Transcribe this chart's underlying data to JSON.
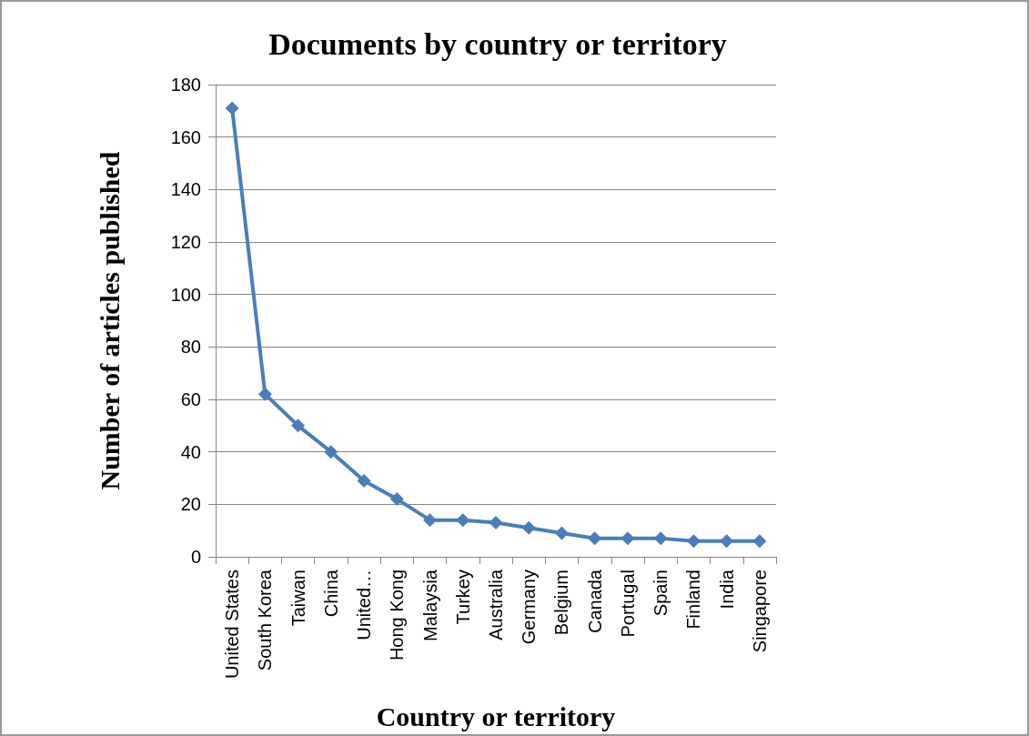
{
  "chart_data": {
    "type": "line",
    "title": "Documents by country or territory",
    "xlabel": "Country or territory",
    "ylabel": "Number of articles published",
    "categories": [
      "United States",
      "South Korea",
      "Taiwan",
      "China",
      "United…",
      "Hong Kong",
      "Malaysia",
      "Turkey",
      "Australia",
      "Germany",
      "Belgium",
      "Canada",
      "Portugal",
      "Spain",
      "Finland",
      "India",
      "Singapore"
    ],
    "series": [
      {
        "color": "#4a7ebb",
        "values": [
          171,
          62,
          50,
          40,
          29,
          22,
          14,
          14,
          13,
          11,
          9,
          7,
          7,
          7,
          6,
          6,
          6
        ]
      }
    ],
    "ylim": [
      0,
      180
    ],
    "yticks": [
      0,
      20,
      40,
      60,
      80,
      100,
      120,
      140,
      160,
      180
    ],
    "grid": "y",
    "marker": "diamond",
    "line_style": "solid"
  }
}
